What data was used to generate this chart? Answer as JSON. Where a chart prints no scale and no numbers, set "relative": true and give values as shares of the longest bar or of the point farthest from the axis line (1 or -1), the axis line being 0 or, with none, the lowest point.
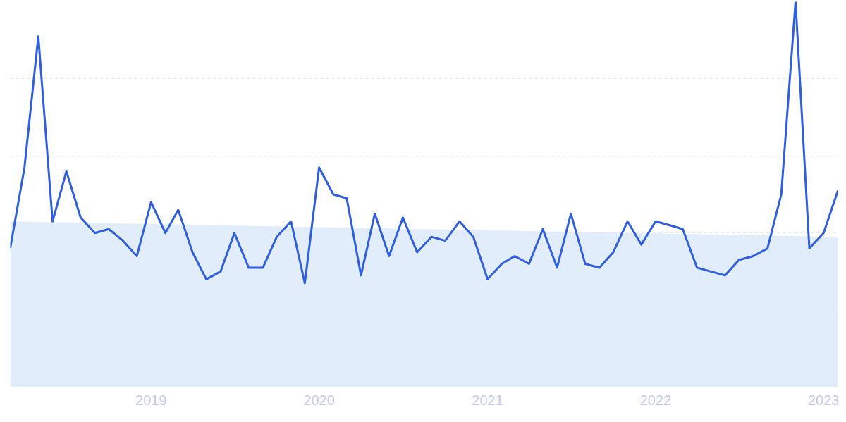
{
  "chart_data": {
    "type": "line",
    "relative": true,
    "grid": "y",
    "x": [
      "2018-03",
      "2018-04",
      "2018-05",
      "2018-06",
      "2018-07",
      "2018-08",
      "2018-09",
      "2018-10",
      "2018-11",
      "2018-12",
      "2019-01",
      "2019-02",
      "2019-03",
      "2019-04",
      "2019-05",
      "2019-06",
      "2019-07",
      "2019-08",
      "2019-09",
      "2019-10",
      "2019-11",
      "2019-12",
      "2020-01",
      "2020-02",
      "2020-03",
      "2020-04",
      "2020-05",
      "2020-06",
      "2020-07",
      "2020-08",
      "2020-09",
      "2020-10",
      "2020-11",
      "2020-12",
      "2021-01",
      "2021-02",
      "2021-03",
      "2021-04",
      "2021-05",
      "2021-06",
      "2021-07",
      "2021-08",
      "2021-09",
      "2021-10",
      "2021-11",
      "2021-12",
      "2022-01",
      "2022-02",
      "2022-03",
      "2022-04",
      "2022-05",
      "2022-06",
      "2022-07",
      "2022-08",
      "2022-09",
      "2022-10",
      "2022-11",
      "2022-12",
      "2023-01",
      "2023-02"
    ],
    "xlim": [
      "2018-03",
      "2023-02"
    ],
    "xticks": [
      "2019",
      "2020",
      "2021",
      "2022",
      "2023"
    ],
    "series": [
      {
        "type": "area",
        "color": "#dbe9fb",
        "x": [
          "2018-03",
          "2023-02"
        ],
        "values": [
          0.43,
          0.39
        ]
      },
      {
        "color": "#2f5fe0",
        "values": [
          0.36,
          0.57,
          0.91,
          0.43,
          0.56,
          0.44,
          0.4,
          0.41,
          0.38,
          0.34,
          0.48,
          0.4,
          0.46,
          0.35,
          0.28,
          0.3,
          0.4,
          0.31,
          0.31,
          0.39,
          0.43,
          0.27,
          0.57,
          0.5,
          0.49,
          0.29,
          0.45,
          0.34,
          0.44,
          0.35,
          0.39,
          0.38,
          0.43,
          0.39,
          0.28,
          0.32,
          0.34,
          0.32,
          0.41,
          0.31,
          0.45,
          0.32,
          0.31,
          0.35,
          0.43,
          0.37,
          0.43,
          0.42,
          0.41,
          0.31,
          0.3,
          0.29,
          0.33,
          0.34,
          0.36,
          0.5,
          1,
          0.36,
          0.4,
          0.51
        ]
      }
    ]
  }
}
